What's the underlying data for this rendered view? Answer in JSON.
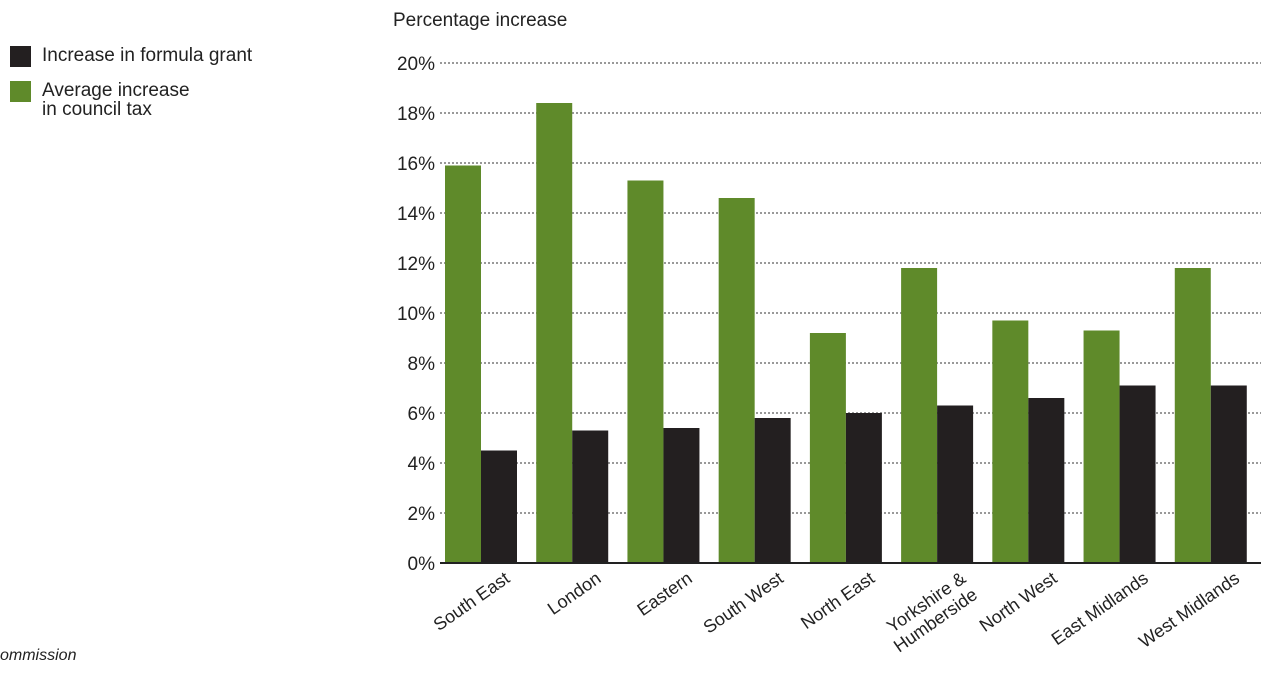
{
  "source_fragment": "ommission",
  "chart_data": {
    "type": "bar",
    "title": "",
    "ylabel": "Percentage increase",
    "xlabel": "",
    "ylim": [
      0,
      20
    ],
    "y_ticks": [
      "0%",
      "2%",
      "4%",
      "6%",
      "8%",
      "10%",
      "12%",
      "14%",
      "16%",
      "18%",
      "20%"
    ],
    "grid": true,
    "legend_position": "top-left",
    "categories": [
      [
        "South East"
      ],
      [
        "London"
      ],
      [
        "Eastern"
      ],
      [
        "South West"
      ],
      [
        "North East"
      ],
      [
        "Yorkshire &",
        "Humberside"
      ],
      [
        "North West"
      ],
      [
        "East Midlands"
      ],
      [
        "West Midlands"
      ]
    ],
    "series": [
      {
        "name": "Average increase in council tax",
        "name_lines": [
          "Average increase",
          "in council tax"
        ],
        "color": "#5f8a2a",
        "values": [
          15.9,
          18.4,
          15.3,
          14.6,
          9.2,
          11.8,
          9.7,
          9.3,
          11.8
        ]
      },
      {
        "name": "Increase in formula grant",
        "name_lines": [
          "Increase in formula grant"
        ],
        "color": "#231f20",
        "values": [
          4.5,
          5.3,
          5.4,
          5.8,
          6.0,
          6.3,
          6.6,
          7.1,
          7.1
        ]
      }
    ]
  }
}
